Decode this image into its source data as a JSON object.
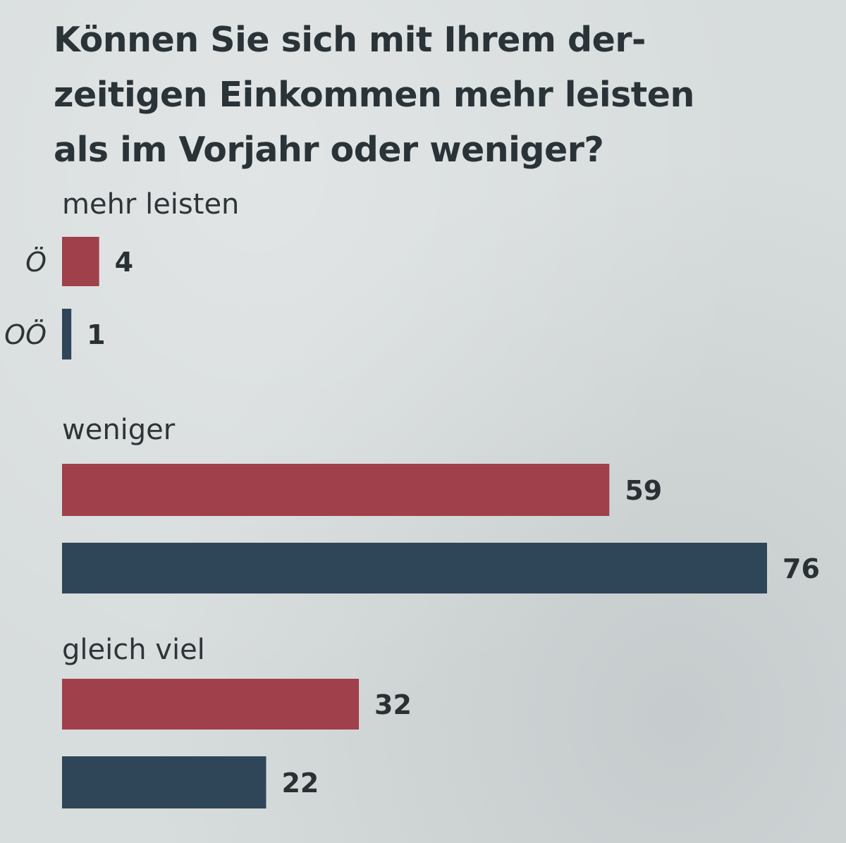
{
  "chart_data": {
    "type": "bar",
    "orientation": "horizontal",
    "title": "Können Sie sich mit Ihrem der-\nzeitigen Einkommen mehr leisten\nals im Vorjahr oder weniger?",
    "categories": [
      "mehr leisten",
      "weniger",
      "gleich viel"
    ],
    "series": [
      {
        "name": "Ö",
        "color": "#a0404a",
        "values": [
          4,
          59,
          32
        ]
      },
      {
        "name": "OÖ",
        "color": "#2e4658",
        "values": [
          1,
          76,
          22
        ]
      }
    ],
    "series_labels_shown_in_category": "mehr leisten",
    "xlim": [
      0,
      76
    ],
    "grid": false,
    "legend": "inline-left"
  }
}
